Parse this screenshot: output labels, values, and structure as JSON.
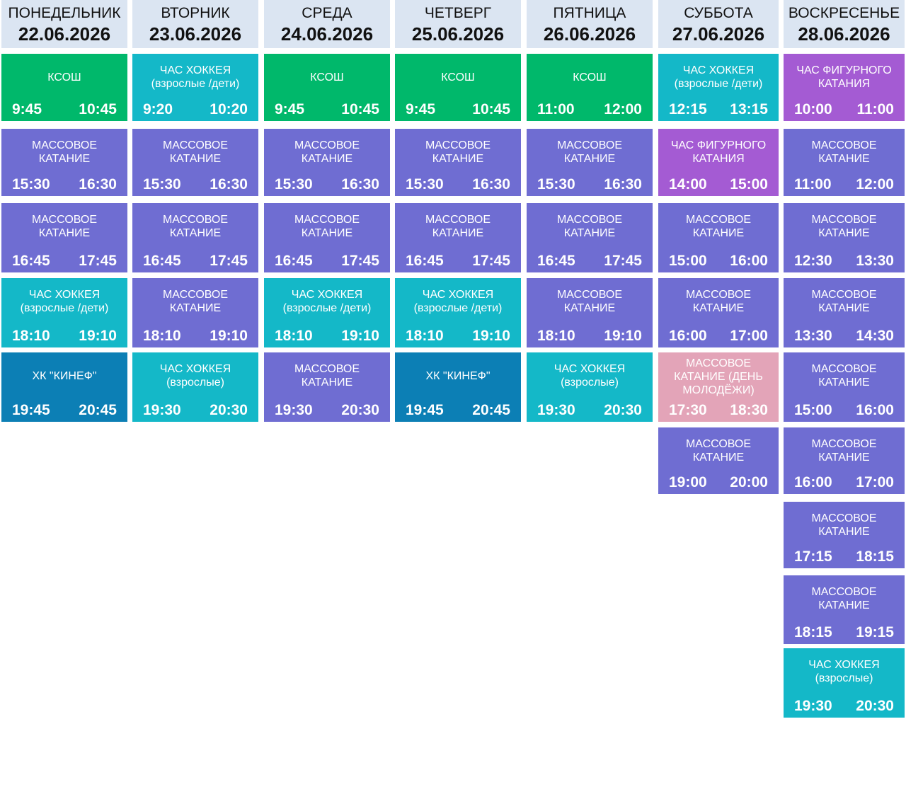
{
  "colors": {
    "header_bg": "#dbe5f2",
    "ksosh": "#00b86b",
    "hockey": "#14b8c8",
    "mass": "#6f6dd2",
    "figure": "#a45bd3",
    "kinef": "#0c7fb5",
    "youth": "#e3a4b8"
  },
  "days": [
    {
      "name": "ПОНЕДЕЛЬНИК",
      "date": "22.06.2026",
      "sessions": [
        {
          "type": "ksosh",
          "title": "КСОШ",
          "start": "9:45",
          "end": "10:45"
        },
        {
          "type": "mass",
          "title": "МАССОВОЕ\nКАТАНИЕ",
          "start": "15:30",
          "end": "16:30"
        },
        {
          "type": "mass",
          "title": "МАССОВОЕ\nКАТАНИЕ",
          "start": "16:45",
          "end": "17:45"
        },
        {
          "type": "hockey",
          "title": "ЧАС ХОККЕЯ\n(взрослые /дети)",
          "start": "18:10",
          "end": "19:10"
        },
        {
          "type": "kinef",
          "title": "ХК \"КИНЕФ\"",
          "start": "19:45",
          "end": "20:45"
        }
      ]
    },
    {
      "name": "ВТОРНИК",
      "date": "23.06.2026",
      "sessions": [
        {
          "type": "hockey",
          "title": "ЧАС ХОККЕЯ\n(взрослые /дети)",
          "start": "9:20",
          "end": "10:20"
        },
        {
          "type": "mass",
          "title": "МАССОВОЕ\nКАТАНИЕ",
          "start": "15:30",
          "end": "16:30"
        },
        {
          "type": "mass",
          "title": "МАССОВОЕ\nКАТАНИЕ",
          "start": "16:45",
          "end": "17:45"
        },
        {
          "type": "mass",
          "title": "МАССОВОЕ\nКАТАНИЕ",
          "start": "18:10",
          "end": "19:10"
        },
        {
          "type": "hockey",
          "title": "ЧАС ХОККЕЯ\n(взрослые)",
          "start": "19:30",
          "end": "20:30"
        }
      ]
    },
    {
      "name": "СРЕДА",
      "date": "24.06.2026",
      "sessions": [
        {
          "type": "ksosh",
          "title": "КСОШ",
          "start": "9:45",
          "end": "10:45"
        },
        {
          "type": "mass",
          "title": "МАССОВОЕ\nКАТАНИЕ",
          "start": "15:30",
          "end": "16:30"
        },
        {
          "type": "mass",
          "title": "МАССОВОЕ\nКАТАНИЕ",
          "start": "16:45",
          "end": "17:45"
        },
        {
          "type": "hockey",
          "title": "ЧАС ХОККЕЯ\n(взрослые /дети)",
          "start": "18:10",
          "end": "19:10"
        },
        {
          "type": "mass",
          "title": "МАССОВОЕ\nКАТАНИЕ",
          "start": "19:30",
          "end": "20:30"
        }
      ]
    },
    {
      "name": "ЧЕТВЕРГ",
      "date": "25.06.2026",
      "sessions": [
        {
          "type": "ksosh",
          "title": "КСОШ",
          "start": "9:45",
          "end": "10:45"
        },
        {
          "type": "mass",
          "title": "МАССОВОЕ\nКАТАНИЕ",
          "start": "15:30",
          "end": "16:30"
        },
        {
          "type": "mass",
          "title": "МАССОВОЕ\nКАТАНИЕ",
          "start": "16:45",
          "end": "17:45"
        },
        {
          "type": "hockey",
          "title": "ЧАС ХОККЕЯ\n(взрослые /дети)",
          "start": "18:10",
          "end": "19:10"
        },
        {
          "type": "kinef",
          "title": "ХК \"КИНЕФ\"",
          "start": "19:45",
          "end": "20:45"
        }
      ]
    },
    {
      "name": "ПЯТНИЦА",
      "date": "26.06.2026",
      "sessions": [
        {
          "type": "ksosh",
          "title": "КСОШ",
          "start": "11:00",
          "end": "12:00"
        },
        {
          "type": "mass",
          "title": "МАССОВОЕ\nКАТАНИЕ",
          "start": "15:30",
          "end": "16:30"
        },
        {
          "type": "mass",
          "title": "МАССОВОЕ\nКАТАНИЕ",
          "start": "16:45",
          "end": "17:45"
        },
        {
          "type": "mass",
          "title": "МАССОВОЕ\nКАТАНИЕ",
          "start": "18:10",
          "end": "19:10"
        },
        {
          "type": "hockey",
          "title": "ЧАС ХОККЕЯ\n(взрослые)",
          "start": "19:30",
          "end": "20:30"
        }
      ]
    },
    {
      "name": "СУББОТА",
      "date": "27.06.2026",
      "sessions": [
        {
          "type": "hockey",
          "title": "ЧАС ХОККЕЯ\n(взрослые /дети)",
          "start": "12:15",
          "end": "13:15"
        },
        {
          "type": "figure",
          "title": "ЧАС ФИГУРНОГО\nКАТАНИЯ",
          "start": "14:00",
          "end": "15:00"
        },
        {
          "type": "mass",
          "title": "МАССОВОЕ\nКАТАНИЕ",
          "start": "15:00",
          "end": "16:00"
        },
        {
          "type": "mass",
          "title": "МАССОВОЕ\nКАТАНИЕ",
          "start": "16:00",
          "end": "17:00"
        },
        {
          "type": "youth",
          "title": "МАССОВОЕ\nКАТАНИЕ (ДЕНЬ\nМОЛОДЁЖИ)",
          "start": "17:30",
          "end": "18:30"
        },
        {
          "type": "mass",
          "title": "МАССОВОЕ\nКАТАНИЕ",
          "start": "19:00",
          "end": "20:00"
        }
      ]
    },
    {
      "name": "ВОСКРЕСЕНЬЕ",
      "date": "28.06.2026",
      "sessions": [
        {
          "type": "figure",
          "title": "ЧАС ФИГУРНОГО\nКАТАНИЯ",
          "start": "10:00",
          "end": "11:00"
        },
        {
          "type": "mass",
          "title": "МАССОВОЕ\nКАТАНИЕ",
          "start": "11:00",
          "end": "12:00"
        },
        {
          "type": "mass",
          "title": "МАССОВОЕ\nКАТАНИЕ",
          "start": "12:30",
          "end": "13:30"
        },
        {
          "type": "mass",
          "title": "МАССОВОЕ\nКАТАНИЕ",
          "start": "13:30",
          "end": "14:30"
        },
        {
          "type": "mass",
          "title": "МАССОВОЕ\nКАТАНИЕ",
          "start": "15:00",
          "end": "16:00"
        },
        {
          "type": "mass",
          "title": "МАССОВОЕ\nКАТАНИЕ",
          "start": "16:00",
          "end": "17:00"
        },
        {
          "type": "mass",
          "title": "МАССОВОЕ\nКАТАНИЕ",
          "start": "17:15",
          "end": "18:15"
        },
        {
          "type": "mass",
          "title": "МАССОВОЕ\nКАТАНИЕ",
          "start": "18:15",
          "end": "19:15"
        },
        {
          "type": "hockey",
          "title": "ЧАС ХОККЕЯ\n(взрослые)",
          "start": "19:30",
          "end": "20:30"
        }
      ]
    }
  ]
}
